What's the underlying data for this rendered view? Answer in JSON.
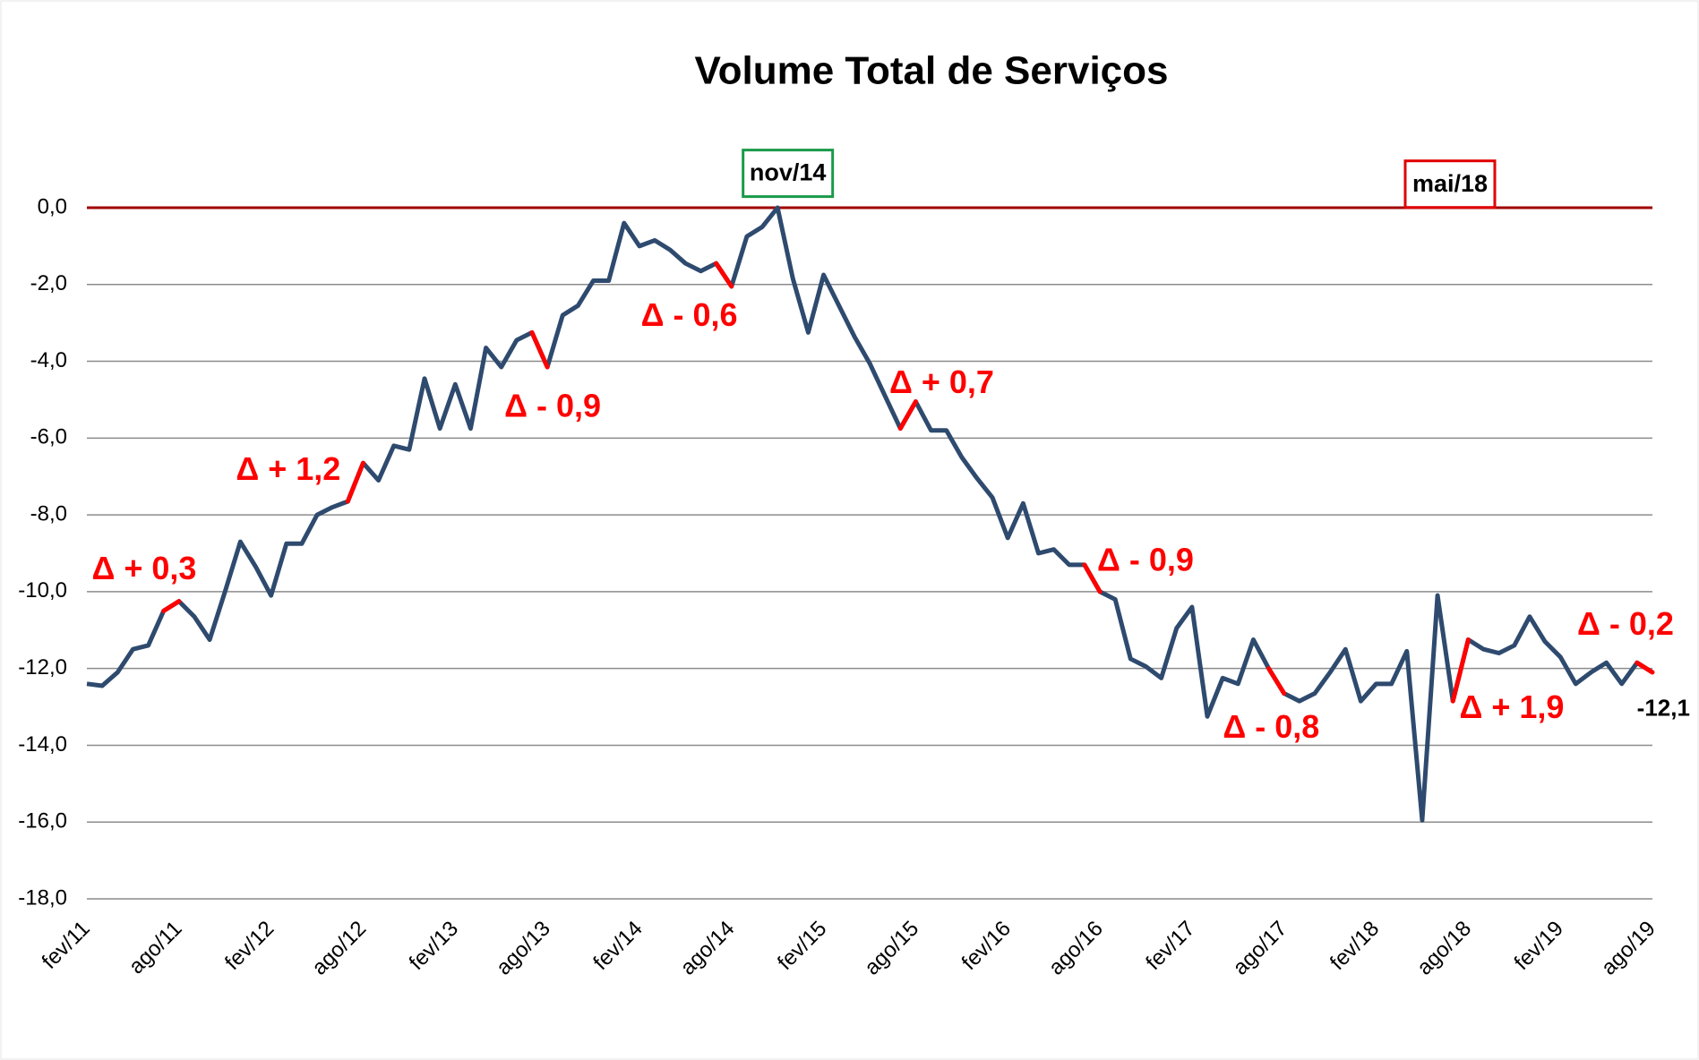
{
  "chart_data": {
    "type": "line",
    "title": "Volume Total de Serviços",
    "categories": [
      "fev/11",
      null,
      null,
      null,
      null,
      null,
      "ago/11",
      null,
      null,
      null,
      null,
      null,
      "fev/12",
      null,
      null,
      null,
      null,
      null,
      "ago/12",
      null,
      null,
      null,
      null,
      null,
      "fev/13",
      null,
      null,
      null,
      null,
      null,
      "ago/13",
      null,
      null,
      null,
      null,
      null,
      "fev/14",
      null,
      null,
      null,
      null,
      null,
      "ago/14",
      null,
      null,
      null,
      null,
      null,
      "fev/15",
      null,
      null,
      null,
      null,
      null,
      "ago/15",
      null,
      null,
      null,
      null,
      null,
      "fev/16",
      null,
      null,
      null,
      null,
      null,
      "ago/16",
      null,
      null,
      null,
      null,
      null,
      "fev/17",
      null,
      null,
      null,
      null,
      null,
      "ago/17",
      null,
      null,
      null,
      null,
      null,
      "fev/18",
      null,
      null,
      null,
      null,
      null,
      "ago/18",
      null,
      null,
      null,
      null,
      null,
      "fev/19",
      null,
      null,
      null,
      null,
      null,
      "ago/19"
    ],
    "series": [
      {
        "name": "Volume Total de Serviços",
        "color": "#2e4a6e",
        "values": [
          -12.4,
          -12.45,
          -12.1,
          -11.5,
          -11.4,
          -10.5,
          -10.25,
          -10.65,
          -11.25,
          -10.0,
          -8.7,
          -9.35,
          -10.1,
          -8.75,
          -8.75,
          -8.0,
          -7.8,
          -7.65,
          -6.65,
          -7.1,
          -6.2,
          -6.3,
          -4.45,
          -5.75,
          -4.6,
          -5.75,
          -3.65,
          -4.15,
          -3.45,
          -3.25,
          -4.15,
          -2.8,
          -2.55,
          -1.9,
          -1.9,
          -0.4,
          -1.0,
          -0.85,
          -1.1,
          -1.45,
          -1.65,
          -1.45,
          -2.05,
          -0.75,
          -0.5,
          0.0,
          -1.85,
          -3.25,
          -1.75,
          -2.55,
          -3.35,
          -4.05,
          -4.9,
          -5.75,
          -5.05,
          -5.8,
          -5.8,
          -6.5,
          -7.05,
          -7.55,
          -8.6,
          -7.7,
          -9.0,
          -8.9,
          -9.3,
          -9.3,
          -10.0,
          -10.2,
          -11.75,
          -11.95,
          -12.25,
          -10.95,
          -10.4,
          -13.25,
          -12.25,
          -12.4,
          -11.25,
          -12.0,
          -12.65,
          -12.85,
          -12.65,
          -12.1,
          -11.5,
          -12.85,
          -12.4,
          -12.4,
          -11.55,
          -15.95,
          -10.1,
          -12.85,
          -11.25,
          -11.5,
          -11.6,
          -11.4,
          -10.65,
          -11.3,
          -11.7,
          -12.4,
          -12.1,
          -11.85,
          -12.4,
          -11.85,
          -12.1
        ],
        "value_labels": [
          null,
          null,
          null,
          null,
          null,
          null,
          null,
          null,
          null,
          null,
          null,
          null,
          null,
          null,
          null,
          null,
          null,
          null,
          null,
          null,
          null,
          null,
          null,
          null,
          null,
          null,
          null,
          null,
          null,
          null,
          null,
          null,
          null,
          null,
          null,
          null,
          null,
          null,
          null,
          null,
          null,
          null,
          null,
          null,
          null,
          null,
          null,
          null,
          null,
          null,
          null,
          null,
          null,
          null,
          null,
          null,
          null,
          null,
          null,
          null,
          null,
          null,
          null,
          null,
          null,
          null,
          null,
          null,
          null,
          null,
          null,
          null,
          null,
          null,
          null,
          null,
          null,
          null,
          null,
          null,
          null,
          null,
          null,
          null,
          null,
          null,
          null,
          null,
          null,
          null,
          null,
          null,
          null,
          null,
          null,
          null,
          null,
          null,
          null,
          null,
          null,
          null,
          "-12,1"
        ]
      }
    ],
    "highlight_color": "#ff0000",
    "reference_line": {
      "value": 0,
      "color": "#a00000"
    },
    "annotations": [
      "Δ + 0,3",
      "Δ + 1,2",
      "Δ - 0,9",
      "Δ - 0,6",
      "Δ + 0,7",
      "Δ - 0,9",
      "Δ - 0,8",
      "Δ + 1,9",
      "Δ - 0,2"
    ],
    "boxed_labels": [
      {
        "text": "nov/14",
        "color": "#1a9a4a"
      },
      {
        "text": "mai/18",
        "color": "#e00000"
      }
    ],
    "ylim": [
      -18,
      0
    ],
    "yticks": [
      {
        "value": 0,
        "label": "0,0"
      },
      {
        "value": -2,
        "label": "-2,0"
      },
      {
        "value": -4,
        "label": "-4,0"
      },
      {
        "value": -6,
        "label": "-6,0"
      },
      {
        "value": -8,
        "label": "-8,0"
      },
      {
        "value": -10,
        "label": "-10,0"
      },
      {
        "value": -12,
        "label": "-12,0"
      },
      {
        "value": -14,
        "label": "-14,0"
      },
      {
        "value": -16,
        "label": "-16,0"
      },
      {
        "value": -18,
        "label": "-18,0"
      }
    ],
    "grid": true
  }
}
